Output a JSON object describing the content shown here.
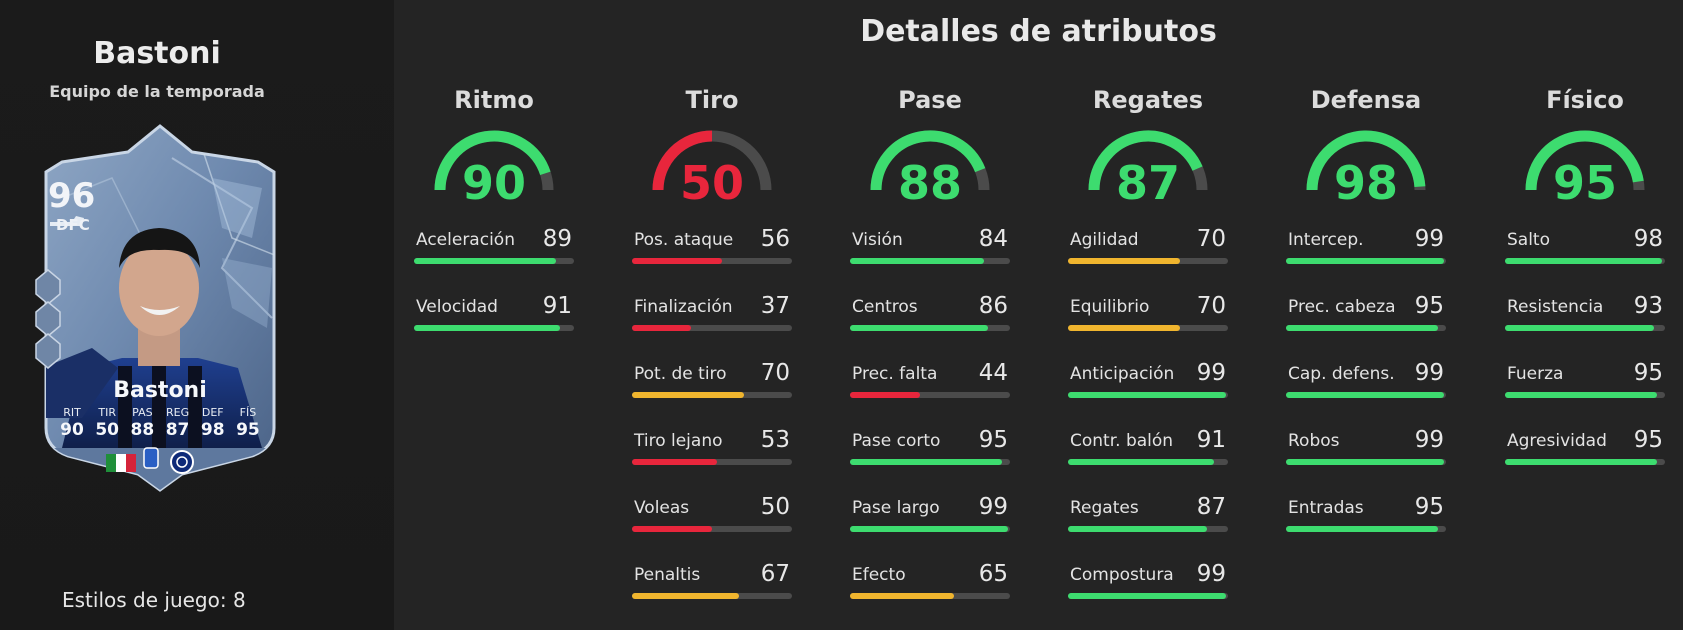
{
  "player": {
    "name": "Bastoni",
    "subtitle": "Equipo de la temporada",
    "playstyles": "Estilos de juego: 8"
  },
  "card": {
    "rating": "96",
    "position": "DFC",
    "name": "Bastoni",
    "stats": [
      {
        "label": "RIT",
        "value": "90"
      },
      {
        "label": "TIR",
        "value": "50"
      },
      {
        "label": "PAS",
        "value": "88"
      },
      {
        "label": "REG",
        "value": "87"
      },
      {
        "label": "DEF",
        "value": "98"
      },
      {
        "label": "FÍS",
        "value": "95"
      }
    ]
  },
  "title": "Detalles de atributos",
  "colors": {
    "high": "#3ddc6f",
    "mid": "#f0b52e",
    "low": "#e8263c",
    "track": "#4b4b4b"
  },
  "categories": [
    {
      "name": "Ritmo",
      "value": 90,
      "stats": [
        {
          "name": "Aceleración",
          "value": 89
        },
        {
          "name": "Velocidad",
          "value": 91
        }
      ]
    },
    {
      "name": "Tiro",
      "value": 50,
      "stats": [
        {
          "name": "Pos. ataque",
          "value": 56
        },
        {
          "name": "Finalización",
          "value": 37
        },
        {
          "name": "Pot. de tiro",
          "value": 70
        },
        {
          "name": "Tiro lejano",
          "value": 53
        },
        {
          "name": "Voleas",
          "value": 50
        },
        {
          "name": "Penaltis",
          "value": 67
        }
      ]
    },
    {
      "name": "Pase",
      "value": 88,
      "stats": [
        {
          "name": "Visión",
          "value": 84
        },
        {
          "name": "Centros",
          "value": 86
        },
        {
          "name": "Prec. falta",
          "value": 44
        },
        {
          "name": "Pase corto",
          "value": 95
        },
        {
          "name": "Pase largo",
          "value": 99
        },
        {
          "name": "Efecto",
          "value": 65
        }
      ]
    },
    {
      "name": "Regates",
      "value": 87,
      "stats": [
        {
          "name": "Agilidad",
          "value": 70
        },
        {
          "name": "Equilibrio",
          "value": 70
        },
        {
          "name": "Anticipación",
          "value": 99
        },
        {
          "name": "Contr. balón",
          "value": 91
        },
        {
          "name": "Regates",
          "value": 87
        },
        {
          "name": "Compostura",
          "value": 99
        }
      ]
    },
    {
      "name": "Defensa",
      "value": 98,
      "stats": [
        {
          "name": "Intercep.",
          "value": 99
        },
        {
          "name": "Prec. cabeza",
          "value": 95
        },
        {
          "name": "Cap. defens.",
          "value": 99
        },
        {
          "name": "Robos",
          "value": 99
        },
        {
          "name": "Entradas",
          "value": 95
        }
      ]
    },
    {
      "name": "Físico",
      "value": 95,
      "stats": [
        {
          "name": "Salto",
          "value": 98
        },
        {
          "name": "Resistencia",
          "value": 93
        },
        {
          "name": "Fuerza",
          "value": 95
        },
        {
          "name": "Agresividad",
          "value": 95
        }
      ]
    }
  ]
}
